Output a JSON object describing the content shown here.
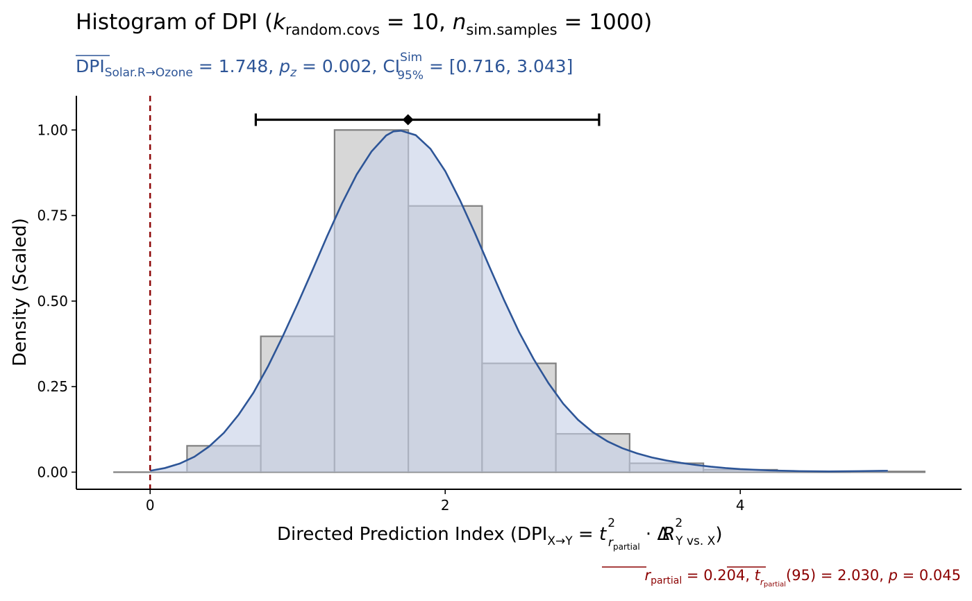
{
  "title": {
    "prefix": "Histogram of DPI (",
    "k_symbol": "k",
    "k_sub": "random.covs",
    "k_eq": " = 10, ",
    "n_symbol": "n",
    "n_sub": "sim.samples",
    "n_eq": " = 1000)"
  },
  "subtitle": {
    "dpi": "DPI",
    "dpi_sub": "Solar.R→Ozone",
    "dpi_val": " = 1.748, ",
    "p_symbol": "p",
    "p_sub": "z",
    "p_val": " = 0.002, ",
    "ci": "CI",
    "ci_sup": "Sim",
    "ci_sub": "95%",
    "ci_val": " = [0.716, 3.043]"
  },
  "xlabel": {
    "text": "Directed Prediction Index (DPI",
    "sub": "X→Y",
    "eq": " = ",
    "t": "t",
    "sup2a": "2",
    "r_sub": "r",
    "partial": "partial",
    "dot": " · ",
    "delta": "Δ",
    "R": "R",
    "sup2b": "2",
    "yvsx": "Y vs. X",
    "close": ")"
  },
  "ylabel": "Density (Scaled)",
  "caption": {
    "r": "r",
    "r_sub": "partial",
    "r_val": " = 0.204, ",
    "t": "t",
    "t_sub_r": "r",
    "t_sub_partial": "partial",
    "t_val": "(95) = 2.030, ",
    "p": "p",
    "p_val": " = 0.045"
  },
  "colors": {
    "bar_fill": "#d7d7d7",
    "bar_stroke": "#7f7f7f",
    "density_fill": "#c6d0e6",
    "density_line": "#2d5597",
    "subtitle": "#2d5597",
    "vline": "#8b0000",
    "caption": "#8b0000",
    "errorbar": "#000000"
  },
  "chart_data": {
    "type": "histogram",
    "xlim": [
      -0.5,
      5.5
    ],
    "ylim": [
      -0.05,
      1.1
    ],
    "x_ticks": [
      0,
      2,
      4
    ],
    "y_ticks": [
      0.0,
      0.25,
      0.5,
      0.75,
      1.0
    ],
    "y_tick_labels": [
      "0.00",
      "0.25",
      "0.50",
      "0.75",
      "1.00"
    ],
    "bins": [
      {
        "x0": -0.25,
        "x1": 0.25,
        "height": 0.0
      },
      {
        "x0": 0.25,
        "x1": 0.75,
        "height": 0.077
      },
      {
        "x0": 0.75,
        "x1": 1.25,
        "height": 0.397
      },
      {
        "x0": 1.25,
        "x1": 1.75,
        "height": 1.0
      },
      {
        "x0": 1.75,
        "x1": 2.25,
        "height": 0.778
      },
      {
        "x0": 2.25,
        "x1": 2.75,
        "height": 0.318
      },
      {
        "x0": 2.75,
        "x1": 3.25,
        "height": 0.112
      },
      {
        "x0": 3.25,
        "x1": 3.75,
        "height": 0.026
      },
      {
        "x0": 3.75,
        "x1": 4.25,
        "height": 0.007
      },
      {
        "x0": 4.25,
        "x1": 4.75,
        "height": 0.0
      },
      {
        "x0": 4.75,
        "x1": 5.25,
        "height": 0.002
      }
    ],
    "density_curve": {
      "x": [
        0.0,
        0.1,
        0.2,
        0.3,
        0.4,
        0.5,
        0.6,
        0.7,
        0.8,
        0.9,
        1.0,
        1.1,
        1.2,
        1.3,
        1.4,
        1.5,
        1.6,
        1.65,
        1.7,
        1.8,
        1.9,
        2.0,
        2.1,
        2.2,
        2.3,
        2.4,
        2.5,
        2.6,
        2.7,
        2.8,
        2.9,
        3.0,
        3.1,
        3.2,
        3.3,
        3.4,
        3.5,
        3.6,
        3.7,
        3.8,
        3.9,
        4.0,
        4.2,
        4.4,
        4.6,
        4.8,
        5.0
      ],
      "y": [
        0.004,
        0.012,
        0.025,
        0.045,
        0.075,
        0.115,
        0.168,
        0.232,
        0.31,
        0.398,
        0.492,
        0.59,
        0.69,
        0.785,
        0.87,
        0.937,
        0.984,
        0.996,
        0.998,
        0.985,
        0.945,
        0.88,
        0.795,
        0.7,
        0.6,
        0.502,
        0.41,
        0.33,
        0.26,
        0.2,
        0.153,
        0.117,
        0.09,
        0.07,
        0.055,
        0.043,
        0.034,
        0.027,
        0.021,
        0.016,
        0.012,
        0.009,
        0.005,
        0.003,
        0.002,
        0.003,
        0.004
      ]
    },
    "vline_x": 0,
    "errorbar": {
      "mean": 1.748,
      "lower": 0.716,
      "upper": 3.043,
      "y": 1.03
    }
  }
}
